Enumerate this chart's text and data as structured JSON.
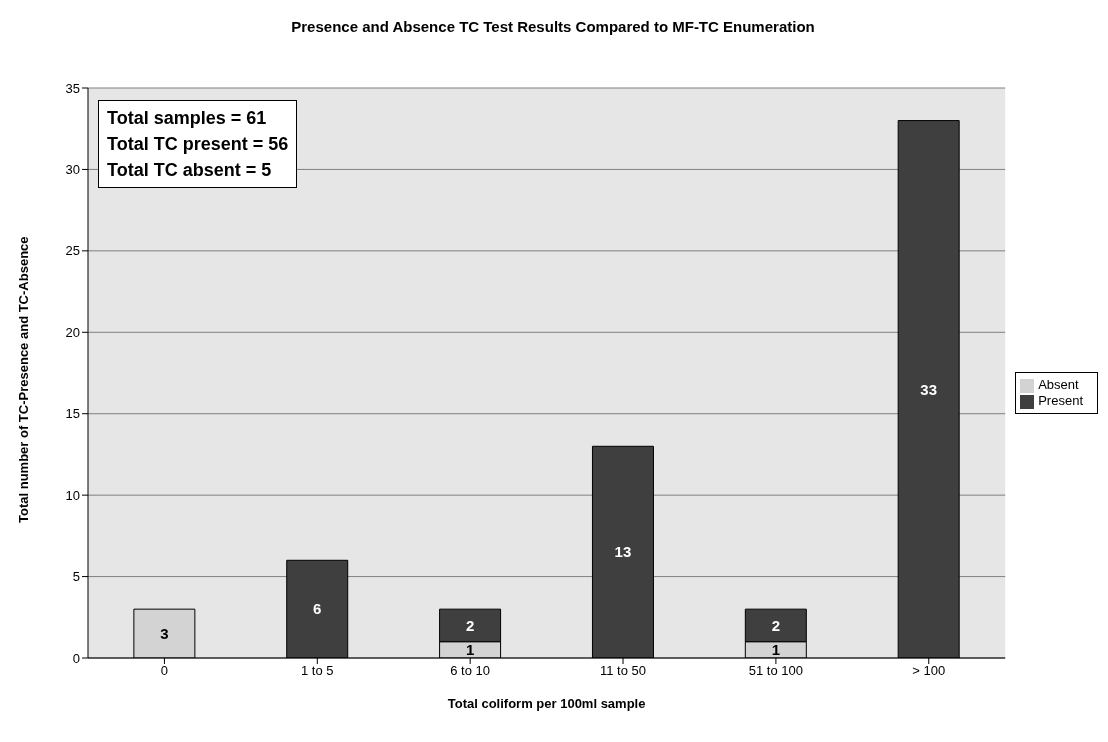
{
  "chart_data": {
    "type": "bar",
    "title": "Presence and Absence TC Test Results Compared to MF-TC Enumeration",
    "xlabel": "Total coliform per 100ml sample",
    "ylabel": "Total number of TC-Presence and TC-Absence",
    "categories": [
      "0",
      "1 to 5",
      "6 to 10",
      "11 to 50",
      "51 to 100",
      "> 100"
    ],
    "stacked": true,
    "series": [
      {
        "name": "Absent",
        "color": "#d3d3d3",
        "values": [
          3,
          0,
          1,
          0,
          1,
          0
        ],
        "value_labels": [
          "3",
          null,
          "1",
          null,
          "1",
          null
        ]
      },
      {
        "name": "Present",
        "color": "#3f3f3f",
        "values": [
          0,
          6,
          2,
          13,
          2,
          33
        ],
        "value_labels": [
          null,
          "6",
          "2",
          "13",
          "2",
          "33"
        ]
      }
    ],
    "ylim": [
      0,
      35
    ],
    "yticks": [
      0,
      5,
      10,
      15,
      20,
      25,
      30,
      35
    ],
    "grid": "y",
    "legend": "right",
    "annotations": [
      "Total samples = 61",
      "Total TC present = 56",
      "Total TC absent = 5"
    ]
  }
}
